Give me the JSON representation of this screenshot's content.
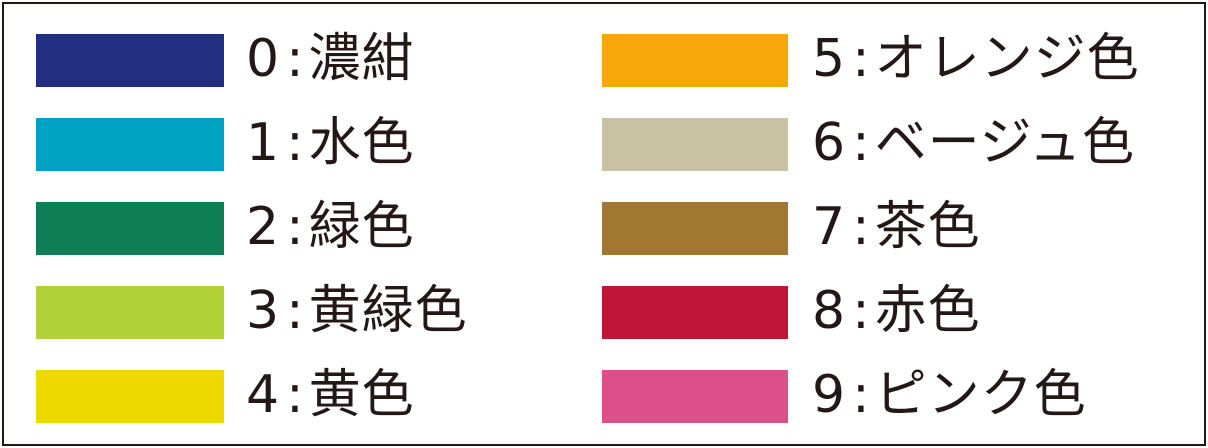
{
  "separator": ":",
  "colors": [
    {
      "code": "0",
      "name": "濃紺",
      "hex": "#202f81"
    },
    {
      "code": "1",
      "name": "水色",
      "hex": "#00a3c4"
    },
    {
      "code": "2",
      "name": "緑色",
      "hex": "#0e7e56"
    },
    {
      "code": "3",
      "name": "黄緑色",
      "hex": "#b1d136"
    },
    {
      "code": "4",
      "name": "黄色",
      "hex": "#eed800"
    },
    {
      "code": "5",
      "name": "オレンジ色",
      "hex": "#f6a70a"
    },
    {
      "code": "6",
      "name": "ベージュ色",
      "hex": "#c9c1a4"
    },
    {
      "code": "7",
      "name": "茶色",
      "hex": "#a27830"
    },
    {
      "code": "8",
      "name": "赤色",
      "hex": "#bf1638"
    },
    {
      "code": "9",
      "name": "ピンク色",
      "hex": "#dc508a"
    }
  ]
}
